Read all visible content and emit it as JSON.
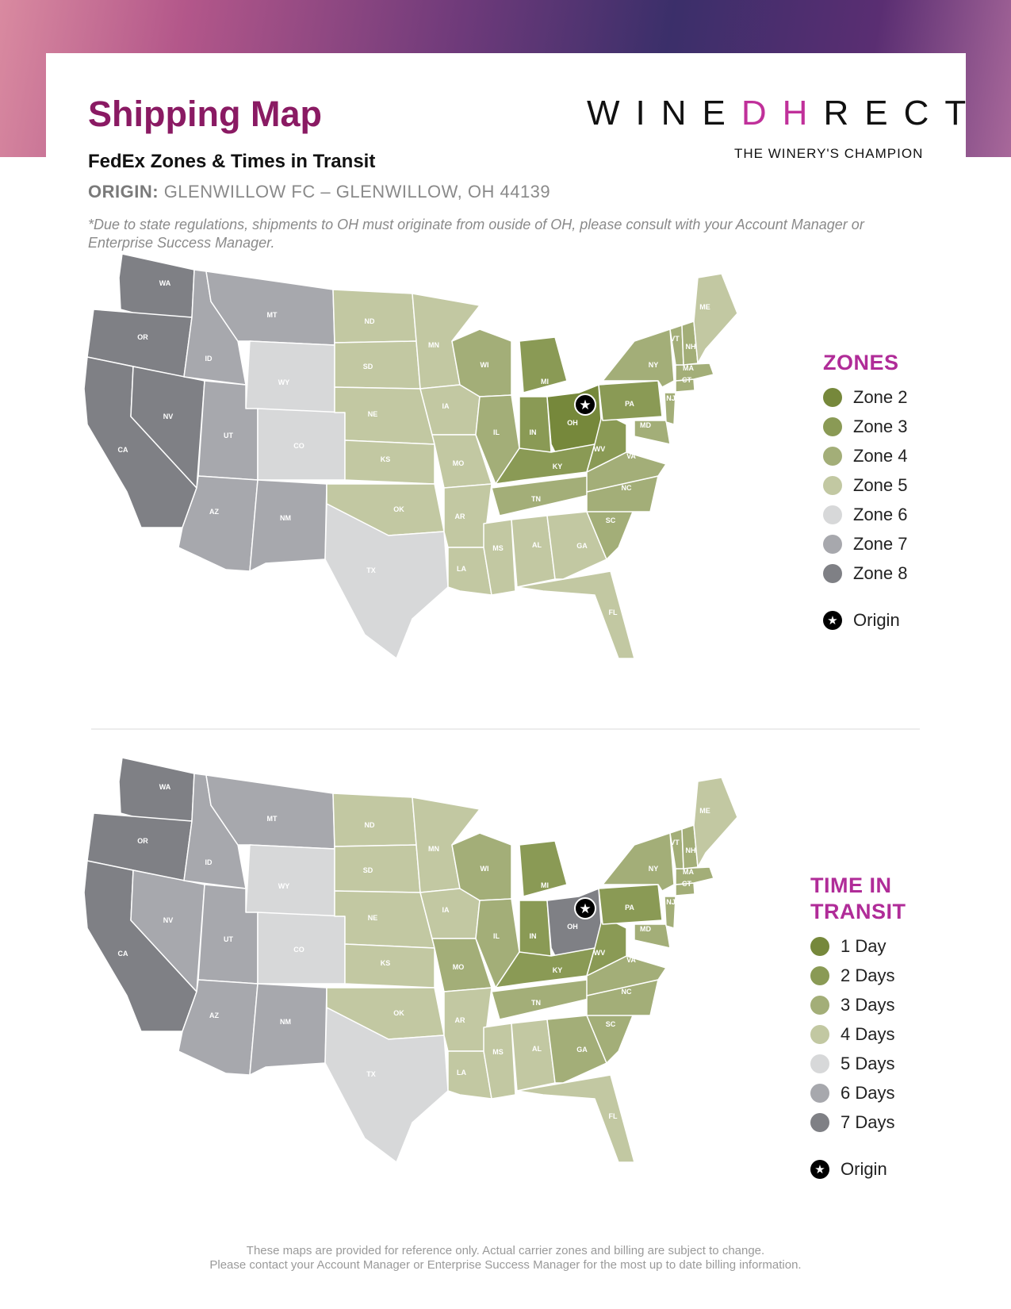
{
  "header": {
    "title": "Shipping Map",
    "subtitle": "FedEx Zones & Times in Transit",
    "origin_label": "ORIGIN:",
    "origin_value": "GLENWILLOW FC – GLENWILLOW, OH 44139",
    "note": "*Due to state regulations, shipments to OH must originate from ouside of OH, please consult with your Account Manager or Enterprise Success Manager."
  },
  "brand": {
    "logo_left": "WINE",
    "logo_mark": "DH",
    "logo_right": "RECT",
    "tagline": "THE WINERY'S CHAMPION"
  },
  "colors": {
    "level1": "#76883b",
    "level2": "#8a9a55",
    "level3": "#a3ae78",
    "level4": "#c2c8a2",
    "level5": "#d7d8d9",
    "level6": "#a7a8ad",
    "level7": "#7f8085",
    "accent": "#b02c98",
    "title": "#8a1a63"
  },
  "zones_legend": {
    "heading": "ZONES",
    "items": [
      {
        "label": "Zone 2",
        "color": "#76883b"
      },
      {
        "label": "Zone 3",
        "color": "#8a9a55"
      },
      {
        "label": "Zone 4",
        "color": "#a3ae78"
      },
      {
        "label": "Zone 5",
        "color": "#c2c8a2"
      },
      {
        "label": "Zone 6",
        "color": "#d7d8d9"
      },
      {
        "label": "Zone 7",
        "color": "#a7a8ad"
      },
      {
        "label": "Zone 8",
        "color": "#7f8085"
      }
    ],
    "origin_label": "Origin"
  },
  "transit_legend": {
    "heading_line1": "TIME IN",
    "heading_line2": "TRANSIT",
    "items": [
      {
        "label": "1 Day",
        "color": "#76883b"
      },
      {
        "label": "2 Days",
        "color": "#8a9a55"
      },
      {
        "label": "3 Days",
        "color": "#a3ae78"
      },
      {
        "label": "4 Days",
        "color": "#c2c8a2"
      },
      {
        "label": "5 Days",
        "color": "#d7d8d9"
      },
      {
        "label": "6 Days",
        "color": "#a7a8ad"
      },
      {
        "label": "7 Days",
        "color": "#7f8085"
      }
    ],
    "origin_label": "Origin"
  },
  "states": {
    "WA": "WA",
    "OR": "OR",
    "CA": "CA",
    "ID": "ID",
    "NV": "NV",
    "MT": "MT",
    "WY": "WY",
    "UT": "UT",
    "AZ": "AZ",
    "CO": "CO",
    "NM": "NM",
    "ND": "ND",
    "SD": "SD",
    "NE": "NE",
    "KS": "KS",
    "OK": "OK",
    "TX": "TX",
    "MN": "MN",
    "IA": "IA",
    "MO": "MO",
    "AR": "AR",
    "LA": "LA",
    "WI": "WI",
    "IL": "IL",
    "MI": "MI",
    "IN": "IN",
    "OH": "OH",
    "KY": "KY",
    "TN": "TN",
    "MS": "MS",
    "AL": "AL",
    "GA": "GA",
    "FL": "FL",
    "SC": "SC",
    "NC": "NC",
    "VA": "VA",
    "WV": "WV",
    "PA": "PA",
    "NY": "NY",
    "MD": "MD",
    "NJ": "NJ",
    "CT": "CT",
    "MA": "MA",
    "VT": "VT",
    "NH": "NH",
    "ME": "ME"
  },
  "zone_levels": {
    "WA": 7,
    "OR": 7,
    "CA": 7,
    "NV": 7,
    "ID": 6,
    "MT": 6,
    "UT": 6,
    "AZ": 6,
    "NM": 6,
    "WY": 5,
    "CO": 5,
    "TX": 5,
    "ND": 4,
    "SD": 4,
    "NE": 4,
    "KS": 4,
    "OK": 4,
    "MN": 4,
    "IA": 4,
    "MO": 4,
    "AR": 4,
    "LA": 4,
    "MS": 4,
    "AL": 4,
    "GA": 4,
    "FL": 4,
    "ME": 4,
    "WI": 3,
    "IL": 3,
    "TN": 3,
    "NC": 3,
    "SC": 3,
    "VA": 3,
    "NY": 3,
    "MD": 3,
    "NJ": 3,
    "CT": 3,
    "MA": 3,
    "VT": 3,
    "NH": 3,
    "MI": 2,
    "IN": 2,
    "KY": 2,
    "WV": 2,
    "PA": 2,
    "OH": 1
  },
  "transit_levels": {
    "WA": 7,
    "OR": 7,
    "CA": 7,
    "NV": 6,
    "ID": 6,
    "MT": 6,
    "UT": 6,
    "AZ": 6,
    "NM": 6,
    "WY": 5,
    "CO": 5,
    "TX": 5,
    "ND": 4,
    "SD": 4,
    "NE": 4,
    "KS": 4,
    "OK": 4,
    "AR": 4,
    "LA": 4,
    "MS": 4,
    "AL": 4,
    "FL": 4,
    "ME": 4,
    "MN": 4,
    "IA": 4,
    "WI": 3,
    "IL": 3,
    "MO": 3,
    "TN": 3,
    "GA": 3,
    "SC": 3,
    "NC": 3,
    "VA": 3,
    "MD": 3,
    "NY": 3,
    "NJ": 3,
    "CT": 3,
    "MA": 3,
    "VT": 3,
    "NH": 3,
    "MI": 2,
    "IN": 2,
    "KY": 2,
    "WV": 2,
    "PA": 2,
    "OH": 7
  },
  "footer": {
    "line1": "These maps are provided for reference only. Actual carrier zones and billing are subject to change.",
    "line2": "Please contact your Account Manager or Enterprise Success Manager for the most up to date billing information."
  }
}
